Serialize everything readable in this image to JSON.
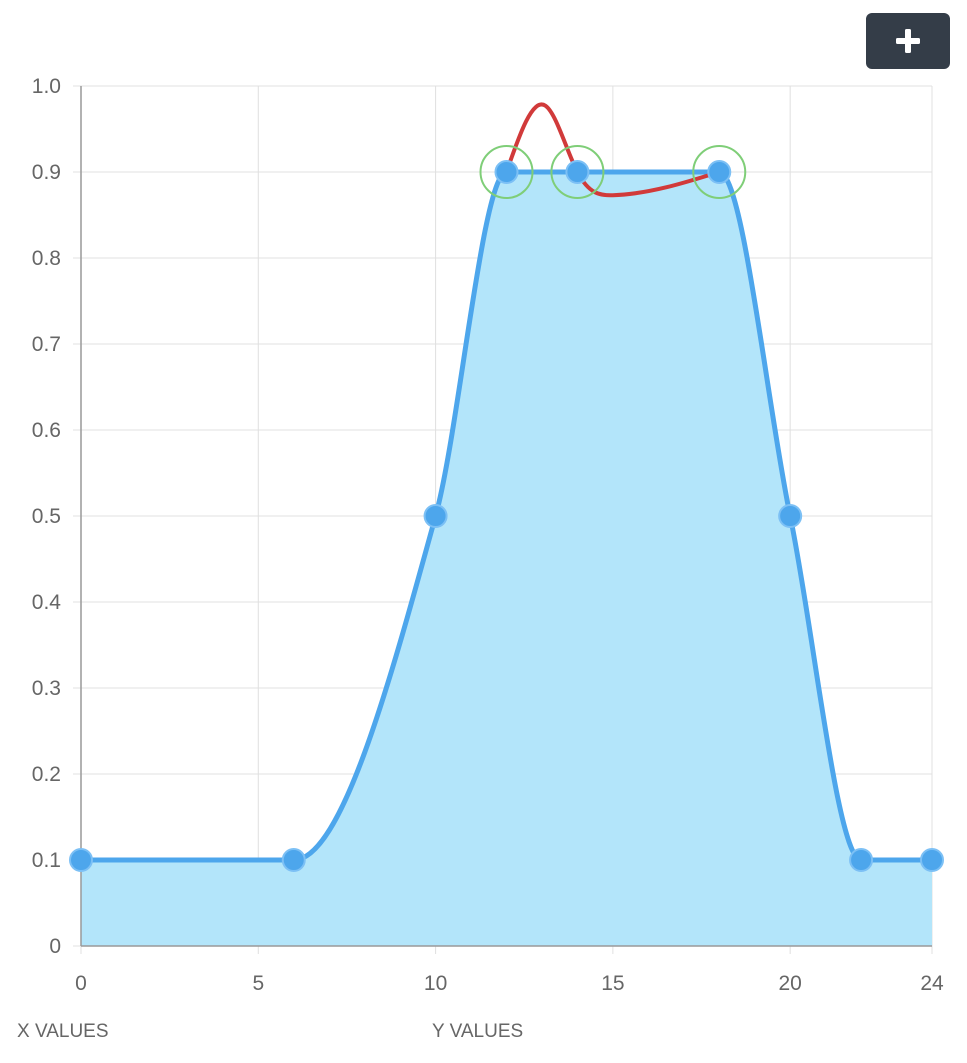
{
  "toolbar": {
    "add_icon": "plus-icon"
  },
  "footer": {
    "left_label": "X VALUES",
    "right_label": "Y VALUES"
  },
  "colors": {
    "curve": "#4da6ec",
    "fill": "#b3e5fa",
    "overlay": "#d13a3a",
    "highlight": "#7fce78",
    "grid": "#e0e0e0",
    "button": "#343d48"
  },
  "chart_data": {
    "type": "area",
    "grid": true,
    "xlim": [
      0,
      24
    ],
    "ylim": [
      0,
      1.0
    ],
    "x_ticks": [
      0,
      5,
      10,
      15,
      20,
      24
    ],
    "y_ticks": [
      "0",
      "0.1",
      "0.2",
      "0.3",
      "0.4",
      "0.5",
      "0.6",
      "0.7",
      "0.8",
      "0.9",
      "1.0"
    ],
    "series": [
      {
        "points": [
          [
            0,
            0.1
          ],
          [
            6,
            0.1
          ],
          [
            10,
            0.5
          ],
          [
            12,
            0.9
          ],
          [
            14,
            0.9
          ],
          [
            18,
            0.9
          ],
          [
            20,
            0.5
          ],
          [
            22,
            0.1
          ],
          [
            24,
            0.1
          ]
        ]
      },
      {
        "points": [
          [
            12,
            0.9
          ],
          [
            13.1,
            0.977
          ],
          [
            14,
            0.9
          ],
          [
            15,
            0.873
          ],
          [
            18,
            0.9
          ]
        ]
      }
    ],
    "highlighted_points": [
      [
        12,
        0.9
      ],
      [
        14,
        0.9
      ],
      [
        18,
        0.9
      ]
    ]
  }
}
